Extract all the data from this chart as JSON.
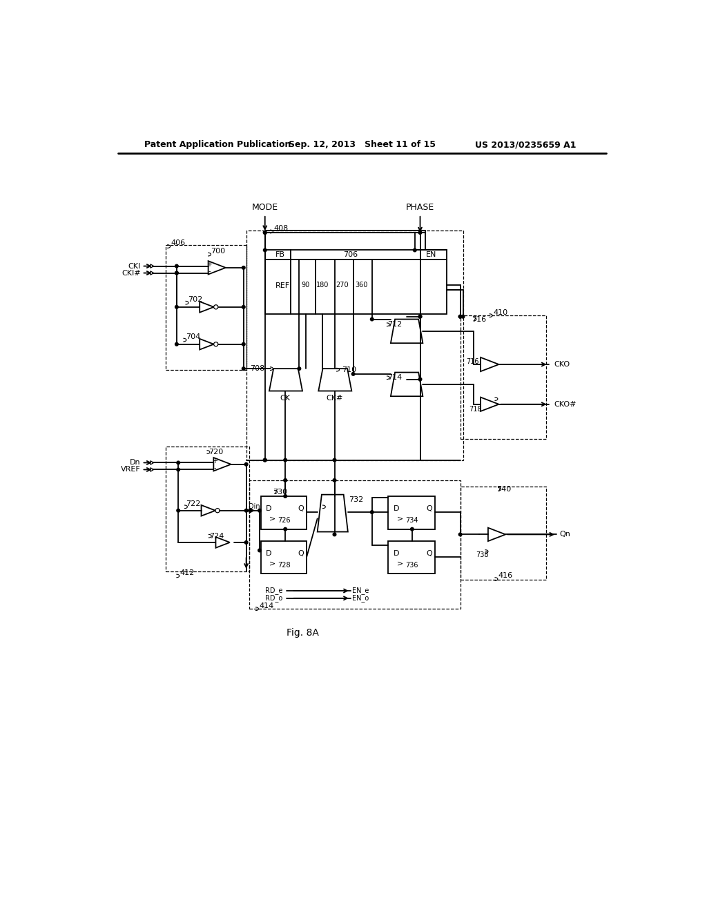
{
  "title_left": "Patent Application Publication",
  "title_center": "Sep. 12, 2013   Sheet 11 of 15",
  "title_right": "US 2013/0235659 A1",
  "fig_label": "Fig. 8A",
  "background": "#ffffff"
}
